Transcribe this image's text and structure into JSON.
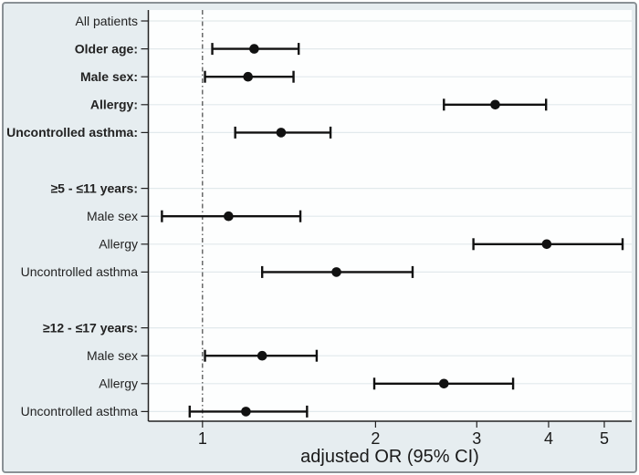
{
  "figure": {
    "background": "#e6edf0",
    "plot_background": "#fdfefe",
    "border_color": "#8a9196",
    "grid_color": "#e2e9ec",
    "marker_color": "#111111",
    "axis_color": "#222222",
    "label_color": "#222222",
    "refline_color": "#444444"
  },
  "chart_data": {
    "type": "forest",
    "xlabel": "adjusted OR (95% CI)",
    "x_scale": "log",
    "xlim": [
      0.805,
      5.58
    ],
    "xticks": [
      1,
      2,
      3,
      4,
      5
    ],
    "refline_x": 1,
    "grid": true,
    "legend": "none",
    "rows": [
      {
        "label": "All patients",
        "bold": false,
        "or": null
      },
      {
        "label": "Older age:",
        "bold": true,
        "or": 1.23,
        "ci_low": 1.04,
        "ci_high": 1.47
      },
      {
        "label": "Male sex:",
        "bold": true,
        "or": 1.2,
        "ci_low": 1.01,
        "ci_high": 1.44
      },
      {
        "label": "Allergy:",
        "bold": true,
        "or": 3.23,
        "ci_low": 2.63,
        "ci_high": 3.96
      },
      {
        "label": "Uncontrolled asthma:",
        "bold": true,
        "or": 1.37,
        "ci_low": 1.14,
        "ci_high": 1.67
      },
      {
        "spacer": true
      },
      {
        "label": "≥5 - ≤11 years:",
        "bold": true,
        "or": null
      },
      {
        "label": "Male sex",
        "bold": false,
        "or": 1.11,
        "ci_low": 0.85,
        "ci_high": 1.48
      },
      {
        "label": "Allergy",
        "bold": false,
        "or": 3.97,
        "ci_low": 2.96,
        "ci_high": 5.38
      },
      {
        "label": "Uncontrolled asthma",
        "bold": false,
        "or": 1.71,
        "ci_low": 1.27,
        "ci_high": 2.32
      },
      {
        "spacer": true
      },
      {
        "label": "≥12 - ≤17 years:",
        "bold": true,
        "or": null
      },
      {
        "label": "Male sex",
        "bold": false,
        "or": 1.27,
        "ci_low": 1.01,
        "ci_high": 1.58
      },
      {
        "label": "Allergy",
        "bold": false,
        "or": 2.63,
        "ci_low": 1.99,
        "ci_high": 3.47
      },
      {
        "label": "Uncontrolled asthma",
        "bold": false,
        "or": 1.19,
        "ci_low": 0.95,
        "ci_high": 1.52
      }
    ]
  }
}
